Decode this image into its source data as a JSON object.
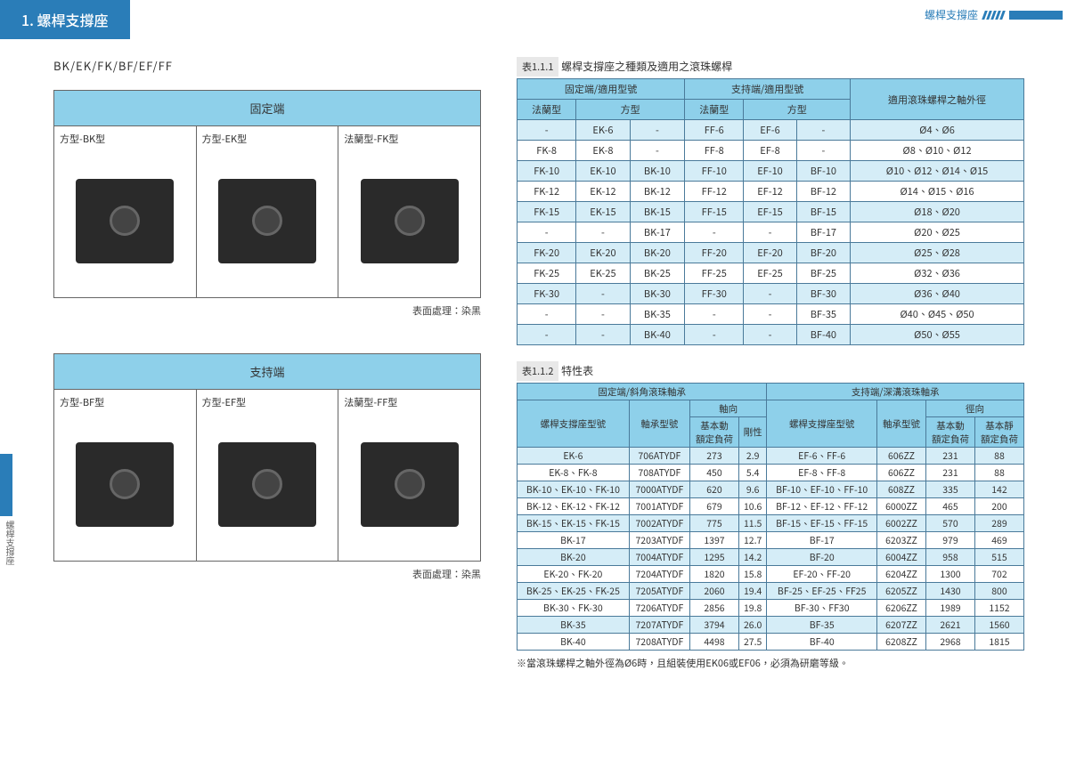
{
  "header": {
    "title": "1. 螺桿支撐座",
    "top_right": "螺桿支撐座"
  },
  "left": {
    "subtitle": "BK/EK/FK/BF/EF/FF",
    "panel1_head": "固定端",
    "panel1_items": [
      {
        "label": "方型-BK型"
      },
      {
        "label": "方型-EK型"
      },
      {
        "label": "法蘭型-FK型"
      }
    ],
    "panel1_caption": "表面處理：染黑",
    "panel2_head": "支持端",
    "panel2_items": [
      {
        "label": "方型-BF型"
      },
      {
        "label": "方型-EF型"
      },
      {
        "label": "法蘭型-FF型"
      }
    ],
    "panel2_caption": "表面處理：染黑"
  },
  "side": {
    "label": "螺桿支撐座"
  },
  "table1": {
    "caption_prefix": "表1.1.1",
    "caption_text": "螺桿支撐座之種類及適用之滾珠螺桿",
    "h1": "固定端/適用型號",
    "h2": "支持端/適用型號",
    "h3": "適用滾珠螺桿之軸外徑",
    "sub1": "法蘭型",
    "sub2": "方型",
    "sub3": "法蘭型",
    "sub4": "方型",
    "rows": [
      {
        "c": [
          "-",
          "EK-6",
          "-",
          "FF-6",
          "EF-6",
          "-",
          "Ø4、Ø6"
        ],
        "alt": true
      },
      {
        "c": [
          "FK-8",
          "EK-8",
          "-",
          "FF-8",
          "EF-8",
          "-",
          "Ø8、Ø10、Ø12"
        ],
        "alt": false
      },
      {
        "c": [
          "FK-10",
          "EK-10",
          "BK-10",
          "FF-10",
          "EF-10",
          "BF-10",
          "Ø10、Ø12、Ø14、Ø15"
        ],
        "alt": true
      },
      {
        "c": [
          "FK-12",
          "EK-12",
          "BK-12",
          "FF-12",
          "EF-12",
          "BF-12",
          "Ø14、Ø15、Ø16"
        ],
        "alt": false
      },
      {
        "c": [
          "FK-15",
          "EK-15",
          "BK-15",
          "FF-15",
          "EF-15",
          "BF-15",
          "Ø18、Ø20"
        ],
        "alt": true
      },
      {
        "c": [
          "-",
          "-",
          "BK-17",
          "-",
          "-",
          "BF-17",
          "Ø20、Ø25"
        ],
        "alt": false
      },
      {
        "c": [
          "FK-20",
          "EK-20",
          "BK-20",
          "FF-20",
          "EF-20",
          "BF-20",
          "Ø25、Ø28"
        ],
        "alt": true
      },
      {
        "c": [
          "FK-25",
          "EK-25",
          "BK-25",
          "FF-25",
          "EF-25",
          "BF-25",
          "Ø32、Ø36"
        ],
        "alt": false
      },
      {
        "c": [
          "FK-30",
          "-",
          "BK-30",
          "FF-30",
          "-",
          "BF-30",
          "Ø36、Ø40"
        ],
        "alt": true
      },
      {
        "c": [
          "-",
          "-",
          "BK-35",
          "-",
          "-",
          "BF-35",
          "Ø40、Ø45、Ø50"
        ],
        "alt": false
      },
      {
        "c": [
          "-",
          "-",
          "BK-40",
          "-",
          "-",
          "BF-40",
          "Ø50、Ø55"
        ],
        "alt": true
      }
    ]
  },
  "table2": {
    "caption_prefix": "表1.1.2",
    "caption_text": "特性表",
    "h1": "固定端/斜角滾珠軸承",
    "h2": "支持端/深溝滾珠軸承",
    "s1": "螺桿支撐座型號",
    "s2": "軸承型號",
    "s3": "軸向",
    "s4": "螺桿支撐座型號",
    "s5": "軸承型號",
    "s6": "徑向",
    "s3a": "基本動\n額定負荷",
    "s3b": "剛性",
    "s6a": "基本動\n額定負荷",
    "s6b": "基本靜\n額定負荷",
    "rows": [
      {
        "c": [
          "EK-6",
          "706ATYDF",
          "273",
          "2.9",
          "EF-6、FF-6",
          "606ZZ",
          "231",
          "88"
        ],
        "alt": true
      },
      {
        "c": [
          "EK-8、FK-8",
          "708ATYDF",
          "450",
          "5.4",
          "EF-8、FF-8",
          "606ZZ",
          "231",
          "88"
        ],
        "alt": false
      },
      {
        "c": [
          "BK-10、EK-10、FK-10",
          "7000ATYDF",
          "620",
          "9.6",
          "BF-10、EF-10、FF-10",
          "608ZZ",
          "335",
          "142"
        ],
        "alt": true
      },
      {
        "c": [
          "BK-12、EK-12、FK-12",
          "7001ATYDF",
          "679",
          "10.6",
          "BF-12、EF-12、FF-12",
          "6000ZZ",
          "465",
          "200"
        ],
        "alt": false
      },
      {
        "c": [
          "BK-15、EK-15、FK-15",
          "7002ATYDF",
          "775",
          "11.5",
          "BF-15、EF-15、FF-15",
          "6002ZZ",
          "570",
          "289"
        ],
        "alt": true
      },
      {
        "c": [
          "BK-17",
          "7203ATYDF",
          "1397",
          "12.7",
          "BF-17",
          "6203ZZ",
          "979",
          "469"
        ],
        "alt": false
      },
      {
        "c": [
          "BK-20",
          "7004ATYDF",
          "1295",
          "14.2",
          "BF-20",
          "6004ZZ",
          "958",
          "515"
        ],
        "alt": true
      },
      {
        "c": [
          "EK-20、FK-20",
          "7204ATYDF",
          "1820",
          "15.8",
          "EF-20、FF-20",
          "6204ZZ",
          "1300",
          "702"
        ],
        "alt": false
      },
      {
        "c": [
          "BK-25、EK-25、FK-25",
          "7205ATYDF",
          "2060",
          "19.4",
          "BF-25、EF-25、FF25",
          "6205ZZ",
          "1430",
          "800"
        ],
        "alt": true
      },
      {
        "c": [
          "BK-30、FK-30",
          "7206ATYDF",
          "2856",
          "19.8",
          "BF-30、FF30",
          "6206ZZ",
          "1989",
          "1152"
        ],
        "alt": false
      },
      {
        "c": [
          "BK-35",
          "7207ATYDF",
          "3794",
          "26.0",
          "BF-35",
          "6207ZZ",
          "2621",
          "1560"
        ],
        "alt": true
      },
      {
        "c": [
          "BK-40",
          "7208ATYDF",
          "4498",
          "27.5",
          "BF-40",
          "6208ZZ",
          "2968",
          "1815"
        ],
        "alt": false
      }
    ]
  },
  "footnote": "※當滾珠螺桿之軸外徑為Ø6時，且組裝使用EK06或EF06，必須為研磨等級。"
}
